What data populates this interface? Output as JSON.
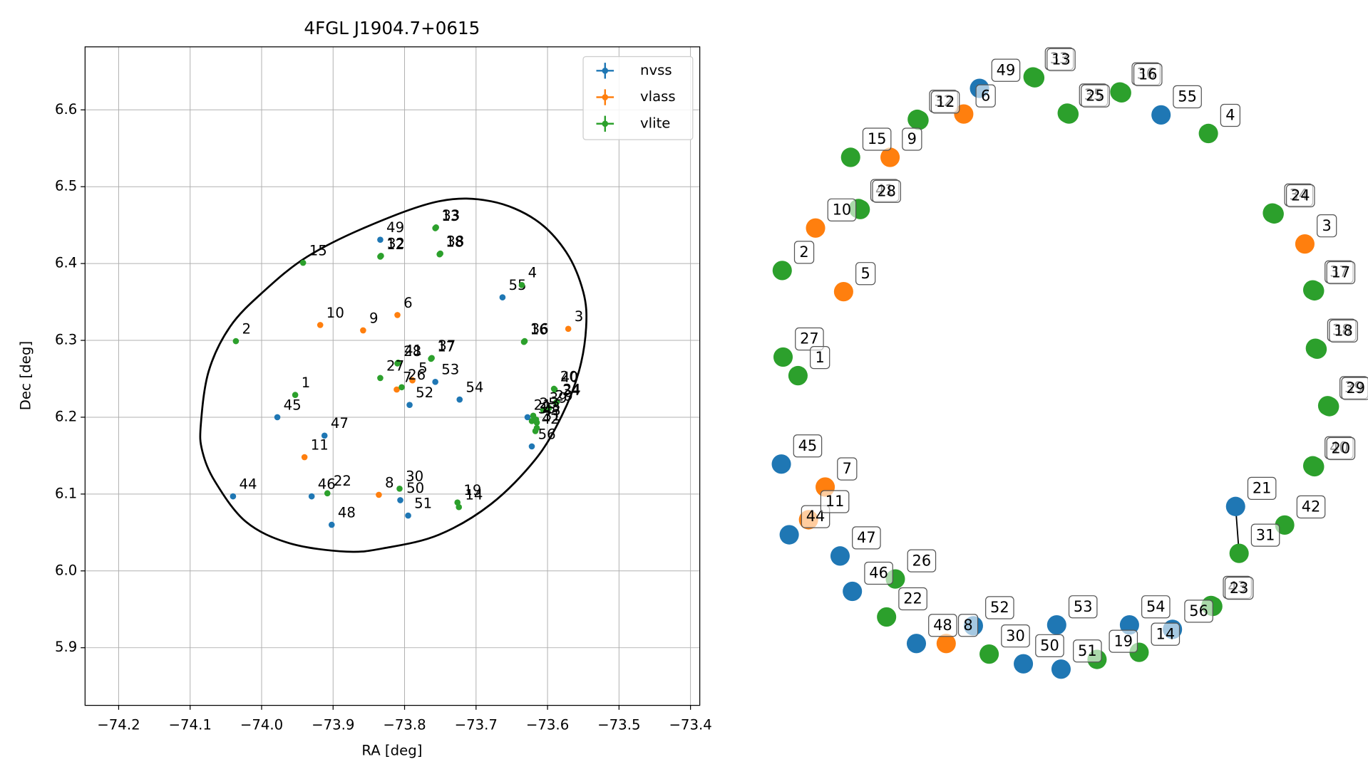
{
  "chart_data": {
    "type": "scatter",
    "title": "4FGL J1904.7+0615",
    "xlabel": "RA [deg]",
    "ylabel": "Dec [deg]",
    "xlim": [
      -74.247,
      -73.387
    ],
    "ylim": [
      5.825,
      6.682
    ],
    "xticks": [
      {
        "value": -74.2,
        "label": "−74.2"
      },
      {
        "value": -74.1,
        "label": "−74.1"
      },
      {
        "value": -74.0,
        "label": "−74.0"
      },
      {
        "value": -73.9,
        "label": "−73.9"
      },
      {
        "value": -73.8,
        "label": "−73.8"
      },
      {
        "value": -73.7,
        "label": "−73.7"
      },
      {
        "value": -73.6,
        "label": "−73.6"
      },
      {
        "value": -73.5,
        "label": "−73.5"
      },
      {
        "value": -73.4,
        "label": "−73.4"
      }
    ],
    "yticks": [
      5.9,
      {
        "value": 6.0,
        "label": "6.0"
      },
      6.1,
      6.2,
      6.3,
      6.4,
      6.5,
      6.6
    ],
    "grid": true,
    "legend": "upper right",
    "series": [
      {
        "name": "nvss",
        "color": "#1f77b4",
        "labels": [
          "49",
          "55",
          "53",
          "52",
          "54",
          "45",
          "47",
          "44",
          "46",
          "48",
          "50",
          "51",
          "21",
          "56"
        ],
        "x": [
          -73.834,
          -73.663,
          -73.757,
          -73.793,
          -73.723,
          -73.978,
          -73.912,
          -74.04,
          -73.93,
          -73.902,
          -73.806,
          -73.795,
          -73.628,
          -73.622
        ],
        "y": [
          6.431,
          6.356,
          6.246,
          6.216,
          6.223,
          6.2,
          6.176,
          6.097,
          6.097,
          6.06,
          6.092,
          6.072,
          6.2,
          6.162
        ]
      },
      {
        "name": "vlass",
        "color": "#ff7f0e",
        "labels": [
          "6",
          "10",
          "9",
          "3",
          "5",
          "7",
          "11",
          "8"
        ],
        "x": [
          -73.81,
          -73.918,
          -73.858,
          -73.571,
          -73.789,
          -73.811,
          -73.94,
          -73.836
        ],
        "y": [
          6.333,
          6.32,
          6.313,
          6.315,
          6.248,
          6.236,
          6.148,
          6.099
        ]
      },
      {
        "name": "vlite",
        "color": "#2ca02c",
        "labels": [
          "15",
          "12",
          "32",
          "13",
          "33",
          "18",
          "38",
          "4",
          "2",
          "1",
          "16",
          "36",
          "28",
          "41",
          "17",
          "37",
          "27",
          "26",
          "19",
          "14",
          "22",
          "30",
          "20",
          "40",
          "24",
          "34",
          "29",
          "39",
          "23",
          "43",
          "31",
          "42",
          "35",
          "25"
        ],
        "x": [
          -73.942,
          -73.834,
          -73.833,
          -73.757,
          -73.756,
          -73.751,
          -73.75,
          -73.636,
          -74.036,
          -73.953,
          -73.633,
          -73.632,
          -73.81,
          -73.809,
          -73.763,
          -73.762,
          -73.834,
          -73.804,
          -73.726,
          -73.724,
          -73.908,
          -73.807,
          -73.591,
          -73.59,
          -73.587,
          -73.588,
          -73.598,
          -73.606,
          -73.616,
          -73.615,
          -73.615,
          -73.617,
          -73.622,
          -73.62
        ],
        "y": [
          6.401,
          6.409,
          6.41,
          6.446,
          6.447,
          6.412,
          6.413,
          6.372,
          6.299,
          6.229,
          6.298,
          6.299,
          6.27,
          6.271,
          6.276,
          6.277,
          6.251,
          6.239,
          6.089,
          6.083,
          6.101,
          6.107,
          6.237,
          6.236,
          6.22,
          6.219,
          6.212,
          6.209,
          6.197,
          6.193,
          6.186,
          6.182,
          6.195,
          6.202
        ]
      }
    ],
    "ellipse": {
      "color": "#000000",
      "x": [
        -74.085,
        -74.074,
        -74.044,
        -73.998,
        -73.936,
        -73.85,
        -73.752,
        -73.679,
        -73.617,
        -73.574,
        -73.55,
        -73.546,
        -73.556,
        -73.58,
        -73.617,
        -73.679,
        -73.752,
        -73.826,
        -73.881,
        -73.961,
        -74.022,
        -74.065,
        -74.083
      ],
      "y": [
        6.191,
        6.26,
        6.318,
        6.363,
        6.409,
        6.449,
        6.481,
        6.481,
        6.457,
        6.415,
        6.363,
        6.317,
        6.26,
        6.202,
        6.145,
        6.087,
        6.047,
        6.03,
        6.025,
        6.036,
        6.064,
        6.116,
        6.156
      ]
    }
  },
  "graph": {
    "type": "network",
    "nodes": [
      {
        "label": "49",
        "group": "nvss"
      },
      {
        "label": "55",
        "group": "nvss"
      },
      {
        "label": "45",
        "group": "nvss"
      },
      {
        "label": "47",
        "group": "nvss"
      },
      {
        "label": "46",
        "group": "nvss"
      },
      {
        "label": "48",
        "group": "nvss"
      },
      {
        "label": "52",
        "group": "nvss"
      },
      {
        "label": "53",
        "group": "nvss"
      },
      {
        "label": "50",
        "group": "nvss"
      },
      {
        "label": "51",
        "group": "nvss"
      },
      {
        "label": "54",
        "group": "nvss"
      },
      {
        "label": "56",
        "group": "nvss"
      },
      {
        "label": "21",
        "group": "nvss"
      },
      {
        "label": "44",
        "group": "nvss"
      },
      {
        "label": "6",
        "group": "vlass"
      },
      {
        "label": "9",
        "group": "vlass"
      },
      {
        "label": "10",
        "group": "vlass"
      },
      {
        "label": "5",
        "group": "vlass"
      },
      {
        "label": "3",
        "group": "vlass"
      },
      {
        "label": "7",
        "group": "vlass"
      },
      {
        "label": "11",
        "group": "vlass"
      },
      {
        "label": "8",
        "group": "vlass"
      },
      {
        "label": "33",
        "group": "vlite"
      },
      {
        "label": "13",
        "group": "vlite"
      },
      {
        "label": "36",
        "group": "vlite"
      },
      {
        "label": "16",
        "group": "vlite"
      },
      {
        "label": "35",
        "group": "vlite"
      },
      {
        "label": "25",
        "group": "vlite"
      },
      {
        "label": "32",
        "group": "vlite"
      },
      {
        "label": "12",
        "group": "vlite"
      },
      {
        "label": "15",
        "group": "vlite"
      },
      {
        "label": "41",
        "group": "vlite"
      },
      {
        "label": "28",
        "group": "vlite"
      },
      {
        "label": "4",
        "group": "vlite"
      },
      {
        "label": "34",
        "group": "vlite"
      },
      {
        "label": "24",
        "group": "vlite"
      },
      {
        "label": "37",
        "group": "vlite"
      },
      {
        "label": "17",
        "group": "vlite"
      },
      {
        "label": "38",
        "group": "vlite"
      },
      {
        "label": "18",
        "group": "vlite"
      },
      {
        "label": "39",
        "group": "vlite"
      },
      {
        "label": "29",
        "group": "vlite"
      },
      {
        "label": "40",
        "group": "vlite"
      },
      {
        "label": "20",
        "group": "vlite"
      },
      {
        "label": "42",
        "group": "vlite"
      },
      {
        "label": "31",
        "group": "vlite"
      },
      {
        "label": "43",
        "group": "vlite"
      },
      {
        "label": "23",
        "group": "vlite"
      },
      {
        "label": "2",
        "group": "vlite"
      },
      {
        "label": "27",
        "group": "vlite"
      },
      {
        "label": "1",
        "group": "vlite"
      },
      {
        "label": "26",
        "group": "vlite"
      },
      {
        "label": "22",
        "group": "vlite"
      },
      {
        "label": "30",
        "group": "vlite"
      },
      {
        "label": "19",
        "group": "vlite"
      },
      {
        "label": "14",
        "group": "vlite"
      }
    ],
    "edges": [
      [
        "21",
        "31"
      ]
    ]
  }
}
